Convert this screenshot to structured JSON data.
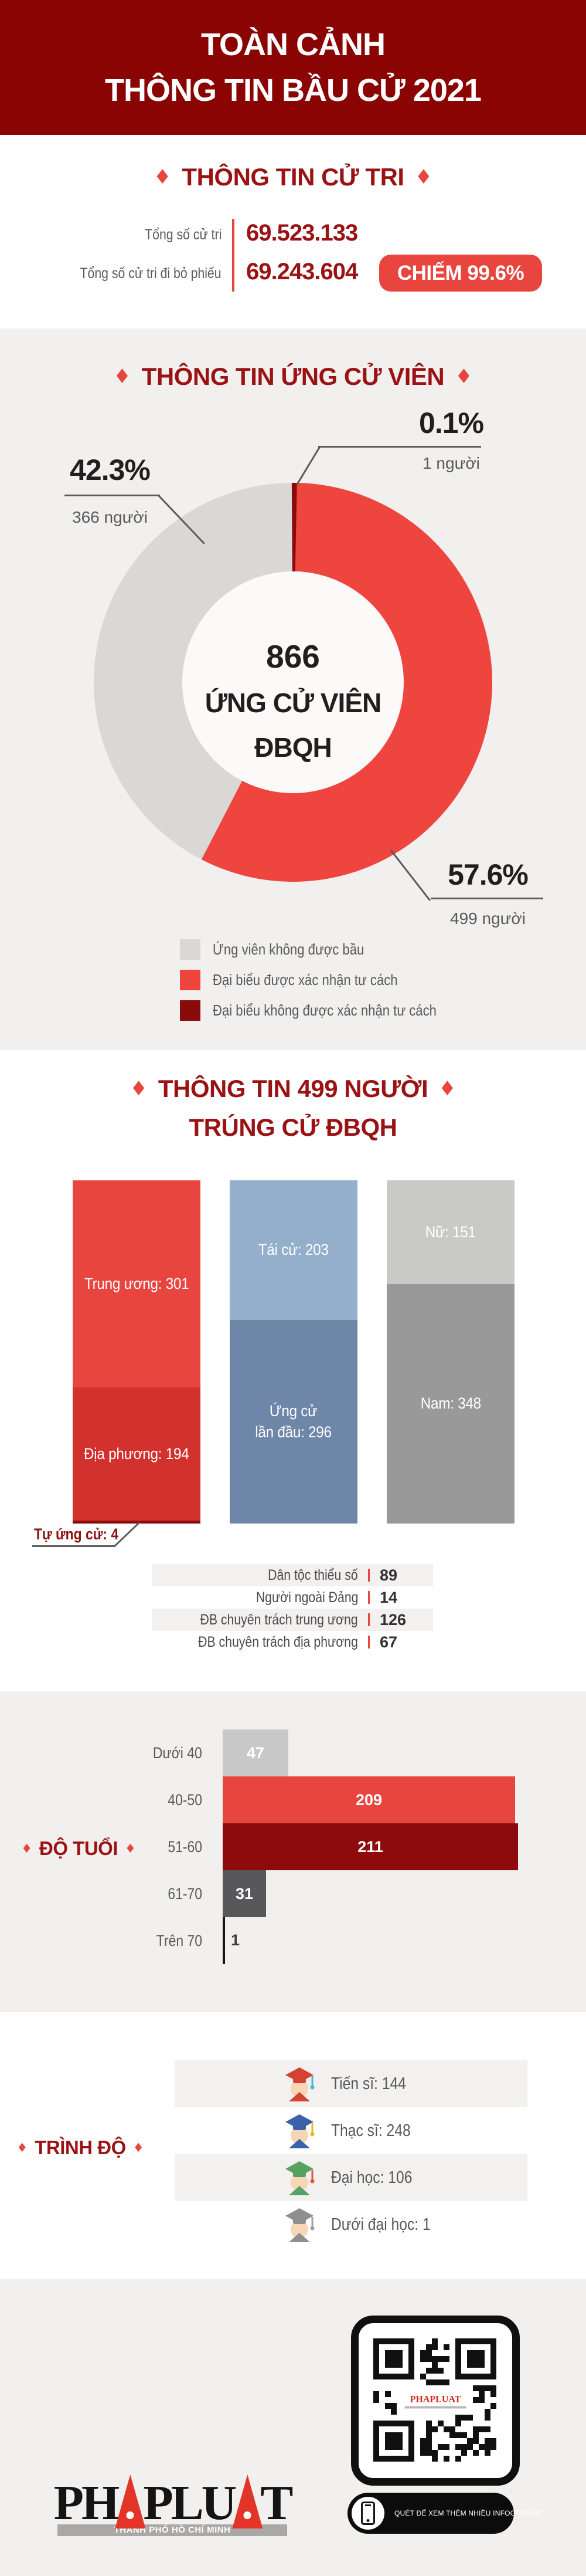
{
  "icons": {
    "diamond": "♦"
  },
  "colors": {
    "header_bg": "#8a0404",
    "section_bg": "#f1f0ee",
    "accent_red": "#e8453e",
    "deep_red": "#9b1214",
    "text_gray": "#58595b"
  },
  "header": {
    "line1": "TOÀN CẢNH",
    "line2": "THÔNG TIN BẦU CỬ 2021"
  },
  "voters": {
    "title": "THÔNG TIN CỬ TRI",
    "rows": [
      {
        "label": "Tổng số cử tri",
        "value": "69.523.133"
      },
      {
        "label": "Tổng số cử tri đi bỏ phiếu",
        "value": "69.243.604"
      }
    ],
    "badge": "CHIẾM 99.6%"
  },
  "candidates": {
    "title": "THÔNG TIN ỨNG CỬ VIÊN",
    "center": [
      "866",
      "ỨNG CỬ VIÊN",
      "ĐBQH"
    ],
    "callouts": [
      {
        "pct": "42.3%",
        "people": "366 người"
      },
      {
        "pct": "0.1%",
        "people": "1 người"
      },
      {
        "pct": "57.6%",
        "people": "499 người"
      }
    ],
    "legend": [
      {
        "label": "Ứng viên không được bầu",
        "color": "#d9d8d7"
      },
      {
        "label": "Đại biểu được xác nhận tư cách",
        "color": "#ee453f"
      },
      {
        "label": "Đại biểu không được xác nhận tư cách",
        "color": "#8a0b0c"
      }
    ]
  },
  "winners": {
    "title1": "THÔNG TIN 499 NGƯỜI",
    "title2": "TRÚNG CỬ ĐBQH",
    "callout": "Tự ứng cử: 4",
    "stats": [
      {
        "label": "Dân tộc thiểu số",
        "value": "89"
      },
      {
        "label": "Người ngoài Đảng",
        "value": "14"
      },
      {
        "label": "ĐB chuyên trách trung ương",
        "value": "126"
      },
      {
        "label": "ĐB chuyên trách địa phương",
        "value": "67"
      }
    ]
  },
  "age": {
    "title": "ĐỘ TUỔI"
  },
  "education": {
    "title": "TRÌNH ĐỘ",
    "rows": [
      {
        "label": "Tiến sĩ: 144",
        "cap": "#d64232",
        "tassel": "#45b3d9"
      },
      {
        "label": "Thạc sĩ: 248",
        "cap": "#3b62a8",
        "tassel": "#f0b51f"
      },
      {
        "label": "Đại học: 106",
        "cap": "#57a263",
        "tassel": "#e2543f"
      },
      {
        "label": "Dưới đại học: 1",
        "cap": "#8f8f8f",
        "tassel": "#9f9f9f"
      }
    ]
  },
  "footer": {
    "logo_p1": "PH",
    "logo_p2": "PLU",
    "logo_p3": "T",
    "logo_sub": "THÀNH PHỐ HỒ CHÍ MINH",
    "qr_center": "PHAPLUAT",
    "pill_text": "QUÉT ĐỂ XEM THÊM NHIỀU INFOGRAPHIC"
  },
  "chart_data": [
    {
      "type": "table",
      "title": "THÔNG TIN CỬ TRI",
      "rows": [
        [
          "Tổng số cử tri",
          "69.523.133"
        ],
        [
          "Tổng số cử tri đi bỏ phiếu",
          "69.243.604"
        ]
      ],
      "note": "CHIẾM 99.6%"
    },
    {
      "type": "pie",
      "donut": true,
      "title": "THÔNG TIN ỨNG CỬ VIÊN",
      "center_label": "866 ỨNG CỬ VIÊN ĐBQH",
      "slices": [
        {
          "label": "Đại biểu được xác nhận tư cách",
          "pct": 57.6,
          "people": 499,
          "color": "#ee453f"
        },
        {
          "label": "Ứng viên không được bầu",
          "pct": 42.3,
          "people": 366,
          "color": "#d9d8d7"
        },
        {
          "label": "Đại biểu không được xác nhận tư cách",
          "pct": 0.1,
          "people": 1,
          "color": "#8a0b0c"
        }
      ]
    },
    {
      "type": "bar",
      "variant": "stacked-vertical",
      "title": "THÔNG TIN 499 NGƯỜI TRÚNG CỬ ĐBQH",
      "total": 499,
      "columns": [
        {
          "segments": [
            {
              "label": "Trung ương: 301",
              "value": 301,
              "color": "#e8453f"
            },
            {
              "label": "Địa phương: 194",
              "value": 194,
              "color": "#d3312e"
            },
            {
              "label": "Tự ứng cử: 4",
              "value": 4,
              "color": "#8a0b0c",
              "callout": true
            }
          ]
        },
        {
          "segments": [
            {
              "label": "Tái cử: 203",
              "value": 203,
              "color": "#93afcc"
            },
            {
              "label": "Ứng cử\nlần đầu: 296",
              "value": 296,
              "color": "#6e86a8"
            }
          ]
        },
        {
          "segments": [
            {
              "label": "Nữ: 151",
              "value": 151,
              "color": "#c9c9c8"
            },
            {
              "label": "Nam: 348",
              "value": 348,
              "color": "#9a9999"
            }
          ]
        }
      ]
    },
    {
      "type": "bar",
      "variant": "horizontal",
      "title": "ĐỘ TUỔI",
      "categories": [
        "Dưới 40",
        "40-50",
        "51-60",
        "61-70",
        "Trên 70"
      ],
      "values": [
        47,
        209,
        211,
        31,
        1
      ],
      "colors": [
        "#c9c8c8",
        "#e8453f",
        "#8e0b0d",
        "#58585a",
        "#161616"
      ],
      "xlim": [
        0,
        220
      ]
    },
    {
      "type": "table",
      "title": "TRÌNH ĐỘ",
      "rows": [
        [
          "Tiến sĩ",
          144
        ],
        [
          "Thạc sĩ",
          248
        ],
        [
          "Đại học",
          106
        ],
        [
          "Dưới đại học",
          1
        ]
      ]
    }
  ]
}
